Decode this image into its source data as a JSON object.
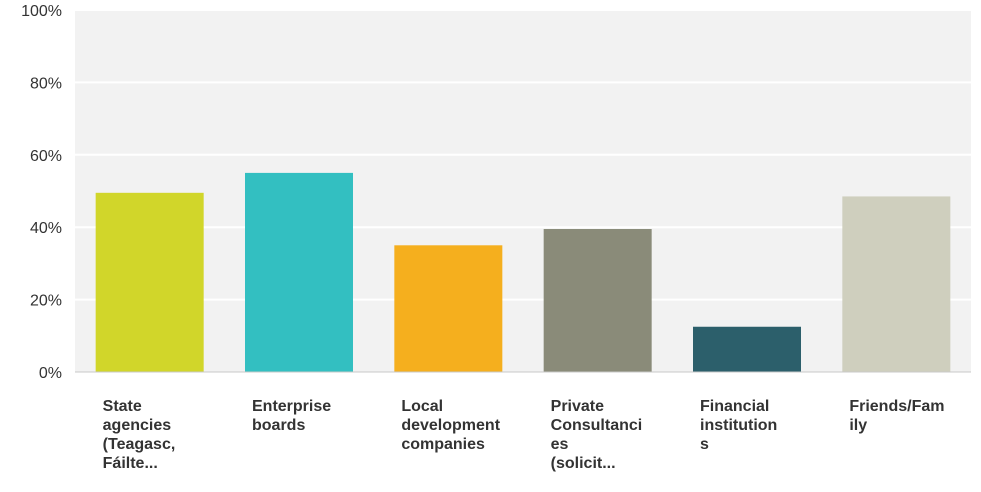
{
  "chart_data": {
    "type": "bar",
    "categories": [
      "State\nagencies\n(Teagasc,\nFáilte...",
      "Enterprise\nboards",
      "Local\ndevelopment\ncompanies",
      "Private\nConsultanci\nes\n(solicit...",
      "Financial\ninstitution\ns",
      "Friends/Fam\nily"
    ],
    "values": [
      49.5,
      55,
      35,
      39.5,
      12.5,
      48.5
    ],
    "colors": [
      "#d1d62a",
      "#33bfc1",
      "#f5af1e",
      "#8a8b79",
      "#2c5f6b",
      "#cfcfbe"
    ],
    "ylim": [
      0,
      100
    ],
    "yticks": [
      "0%",
      "20%",
      "40%",
      "60%",
      "80%",
      "100%"
    ],
    "grid": true,
    "title": "",
    "xlabel": "",
    "ylabel": ""
  }
}
